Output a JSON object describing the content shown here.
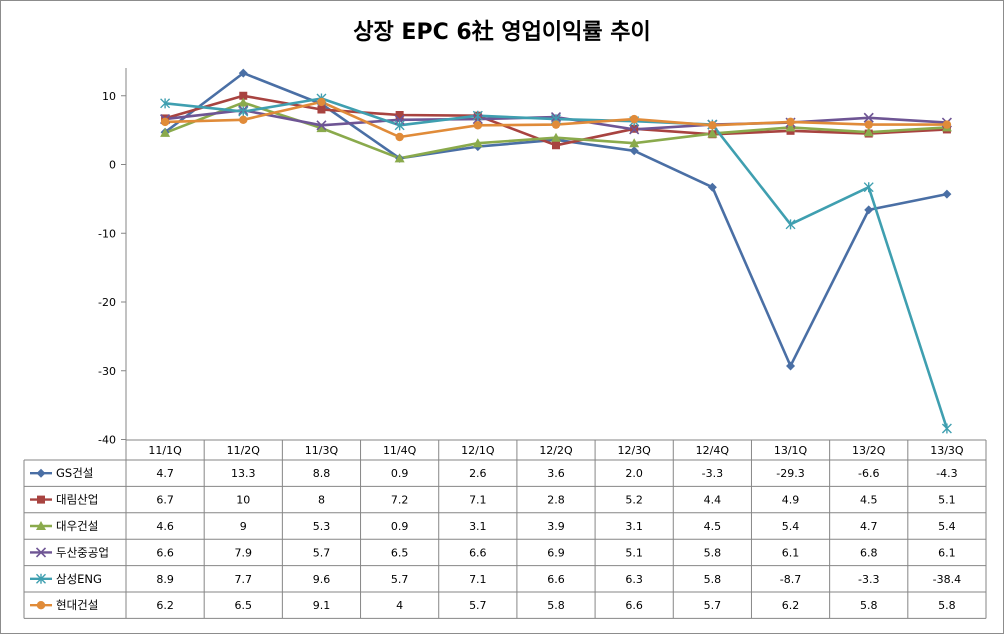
{
  "chart_data": {
    "type": "line",
    "title": "상장 EPC 6社 영업이익률 추이",
    "categories": [
      "11/1Q",
      "11/2Q",
      "11/3Q",
      "11/4Q",
      "12/1Q",
      "12/2Q",
      "12/3Q",
      "12/4Q",
      "13/1Q",
      "13/2Q",
      "13/3Q"
    ],
    "ylim": [
      -40,
      15
    ],
    "yticks": [
      10,
      0,
      -10,
      -20,
      -30,
      -40
    ],
    "grid": false,
    "legend": "data-table",
    "series": [
      {
        "name": "GS건설",
        "color": "#4a6fa5",
        "marker": "diamond",
        "values": [
          4.7,
          13.3,
          8.8,
          0.9,
          2.6,
          3.6,
          2.0,
          -3.3,
          -29.3,
          -6.6,
          -4.3
        ],
        "labels": [
          "4.7",
          "13.3",
          "8.8",
          "0.9",
          "2.6",
          "3.6",
          "2.0",
          "-3.3",
          "-29.3",
          "-6.6",
          "-4.3"
        ]
      },
      {
        "name": "대림산업",
        "color": "#a84340",
        "marker": "square",
        "values": [
          6.7,
          10,
          8,
          7.2,
          7.1,
          2.8,
          5.2,
          4.4,
          4.9,
          4.5,
          5.1
        ],
        "labels": [
          "6.7",
          "10",
          "8",
          "7.2",
          "7.1",
          "2.8",
          "5.2",
          "4.4",
          "4.9",
          "4.5",
          "5.1"
        ]
      },
      {
        "name": "대우건설",
        "color": "#8aaa4c",
        "marker": "triangle",
        "values": [
          4.6,
          9,
          5.3,
          0.9,
          3.1,
          3.9,
          3.1,
          4.5,
          5.4,
          4.7,
          5.4
        ],
        "labels": [
          "4.6",
          "9",
          "5.3",
          "0.9",
          "3.1",
          "3.9",
          "3.1",
          "4.5",
          "5.4",
          "4.7",
          "5.4"
        ]
      },
      {
        "name": "두산중공업",
        "color": "#6e5594",
        "marker": "x",
        "values": [
          6.6,
          7.9,
          5.7,
          6.5,
          6.6,
          6.9,
          5.1,
          5.8,
          6.1,
          6.8,
          6.1
        ],
        "labels": [
          "6.6",
          "7.9",
          "5.7",
          "6.5",
          "6.6",
          "6.9",
          "5.1",
          "5.8",
          "6.1",
          "6.8",
          "6.1"
        ]
      },
      {
        "name": "삼성ENG",
        "color": "#3f9fb0",
        "marker": "star",
        "values": [
          8.9,
          7.7,
          9.6,
          5.7,
          7.1,
          6.6,
          6.3,
          5.8,
          -8.7,
          -3.3,
          -38.4
        ],
        "labels": [
          "8.9",
          "7.7",
          "9.6",
          "5.7",
          "7.1",
          "6.6",
          "6.3",
          "5.8",
          "-8.7",
          "-3.3",
          "-38.4"
        ]
      },
      {
        "name": "현대건설",
        "color": "#e08b39",
        "marker": "circle",
        "values": [
          6.2,
          6.5,
          9.1,
          4,
          5.7,
          5.8,
          6.6,
          5.7,
          6.2,
          5.8,
          5.8
        ],
        "labels": [
          "6.2",
          "6.5",
          "9.1",
          "4",
          "5.7",
          "5.8",
          "6.6",
          "5.7",
          "6.2",
          "5.8",
          "5.8"
        ]
      }
    ]
  }
}
